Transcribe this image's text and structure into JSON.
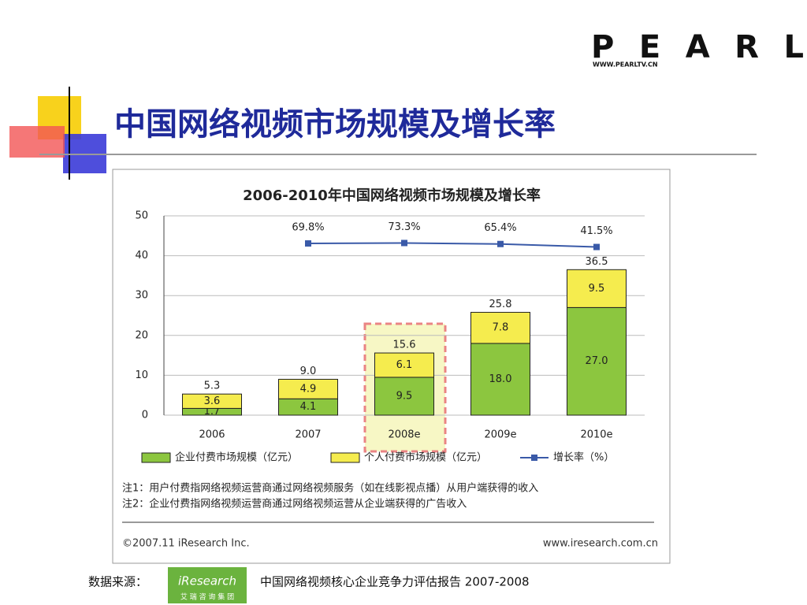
{
  "slide": {
    "title": "中国网络视频市场规模及增长率",
    "logo": "PEARL",
    "logo_url": "WWW.PEARLTV.CN",
    "source_label": "数据来源：",
    "source_logo": "iResearch",
    "source_logo_sub": "艾 瑞 咨 询 集 团",
    "source_text": "中国网络视频核心企业竞争力评估报告 2007-2008"
  },
  "chart_data": {
    "type": "stacked_bar",
    "title": "2006-2010年中国网络视频市场规模及增长率",
    "categories": [
      "2006",
      "2007",
      "2008e",
      "2009e",
      "2010e"
    ],
    "series": [
      {
        "name": "企业付费市场规模（亿元）",
        "color": "#8cc63f",
        "values": [
          1.7,
          4.1,
          9.5,
          18.0,
          27.0
        ],
        "value_labels": [
          "1.7",
          "4.1",
          "9.5",
          "18.0",
          "27.0"
        ]
      },
      {
        "name": "个人付费市场规模（亿元）",
        "color": "#f5ec4e",
        "values": [
          3.6,
          4.9,
          6.1,
          7.8,
          9.5
        ]
      },
      {
        "name": "增长率（%）",
        "type": "line",
        "axis": "y2",
        "color": "#3a5aa8",
        "values": [
          null,
          69.8,
          73.3,
          65.4,
          41.5
        ],
        "value_labels": [
          null,
          "69.8%",
          "73.3%",
          "65.4%",
          "41.5%"
        ]
      }
    ],
    "total_labels": [
      "5.3",
      "9.0",
      "15.6",
      "25.8",
      "36.5"
    ],
    "ylim": [
      0,
      50
    ],
    "yticks": [
      0,
      10,
      20,
      30,
      40,
      50
    ],
    "y2lim": [
      -1300,
      290
    ],
    "grid": true,
    "legend": "bottom",
    "notes": [
      "注1：用户付费指网络视频运营商通过网络视频服务（如在线影视点播）从用户端获得的收入",
      "注2：企业付费指网络视频运营商通过网络视频运营从企业端获得的广告收入"
    ],
    "copyright": "©2007.11 iResearch Inc.",
    "url": "www.iresearch.com.cn"
  }
}
